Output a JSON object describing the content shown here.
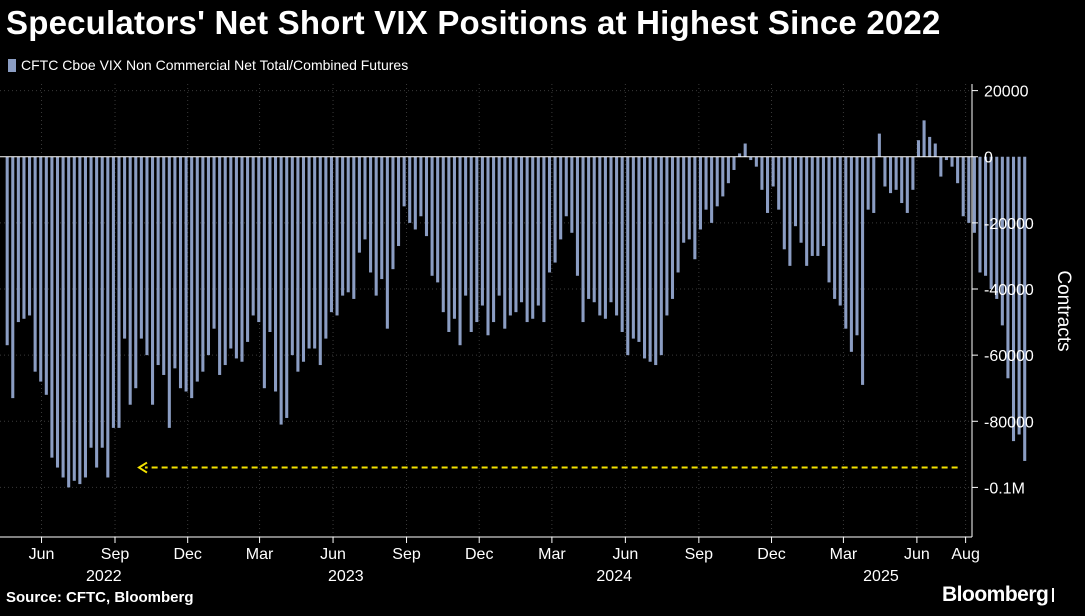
{
  "page": {
    "title": "Speculators' Net Short VIX Positions at Highest Since 2022",
    "source": "Source: CFTC, Bloomberg",
    "brand": "Bloomberg"
  },
  "colors": {
    "background": "#000000",
    "bar": "#8b9dc3",
    "annotation": "#f3e200",
    "grid": "#3a3a3a",
    "text": "#ffffff"
  },
  "chart_data": {
    "type": "bar",
    "series": [
      {
        "name": "CFTC Cboe VIX Non Commercial Net Total/Combined Futures",
        "start": "2022-05-03",
        "step_days": 7,
        "values": [
          -57000,
          -73000,
          -50000,
          -49000,
          -48000,
          -65000,
          -68000,
          -72000,
          -91000,
          -94000,
          -97000,
          -100000,
          -98000,
          -99000,
          -97000,
          -88000,
          -94000,
          -88000,
          -97000,
          -82000,
          -82000,
          -55000,
          -75000,
          -70000,
          -55000,
          -60000,
          -75000,
          -63000,
          -66000,
          -82000,
          -64000,
          -70000,
          -71000,
          -73000,
          -68000,
          -65000,
          -60000,
          -52000,
          -66000,
          -63000,
          -58000,
          -61000,
          -62000,
          -56000,
          -48000,
          -50000,
          -70000,
          -53000,
          -71000,
          -81000,
          -79000,
          -60000,
          -65000,
          -62000,
          -58000,
          -58000,
          -63000,
          -55000,
          -47000,
          -48000,
          -42000,
          -41000,
          -43000,
          -29000,
          -25000,
          -35000,
          -42000,
          -37000,
          -52000,
          -34000,
          -27000,
          -15000,
          -20000,
          -22000,
          -18000,
          -24000,
          -36000,
          -38000,
          -47000,
          -53000,
          -49000,
          -57000,
          -42000,
          -53000,
          -50000,
          -45000,
          -54000,
          -50000,
          -42000,
          -52000,
          -48000,
          -47000,
          -44000,
          -50000,
          -49000,
          -45000,
          -50000,
          -35000,
          -32000,
          -25000,
          -18000,
          -23000,
          -36000,
          -50000,
          -43000,
          -44000,
          -48000,
          -49000,
          -44000,
          -48000,
          -53000,
          -60000,
          -55000,
          -56000,
          -61000,
          -62000,
          -63000,
          -60000,
          -48000,
          -43000,
          -35000,
          -26000,
          -25000,
          -31000,
          -22000,
          -16000,
          -20000,
          -15000,
          -12000,
          -8000,
          -4000,
          1000,
          4000,
          -1000,
          -3000,
          -10000,
          -17000,
          -9000,
          -16000,
          -28000,
          -33000,
          -21000,
          -26000,
          -33000,
          -30000,
          -30000,
          -27000,
          -38000,
          -43000,
          -45000,
          -52000,
          -59000,
          -54000,
          -69000,
          -16000,
          -17000,
          7000,
          -9000,
          -11000,
          -10000,
          -14000,
          -17000,
          -10000,
          5000,
          11000,
          6000,
          4000,
          -6000,
          -1000,
          -3000,
          -8000,
          -18000,
          -20000,
          -23000,
          -35000,
          -36000,
          -40000,
          -43000,
          -51000,
          -67000,
          -86000,
          -84000,
          -92000
        ]
      }
    ],
    "y_ticks": [
      "20000",
      "0",
      "-20000",
      "-40000",
      "-60000",
      "-80000",
      "-0.1M"
    ],
    "ylim": [
      -115000,
      22000
    ],
    "ylabel": "Contracts",
    "x_ticks": [
      {
        "date": "2022-06-15",
        "label": "Jun"
      },
      {
        "date": "2022-09-15",
        "label": "Sep"
      },
      {
        "date": "2022-12-15",
        "label": "Dec"
      },
      {
        "date": "2023-03-15",
        "label": "Mar"
      },
      {
        "date": "2023-06-15",
        "label": "Jun"
      },
      {
        "date": "2023-09-15",
        "label": "Sep"
      },
      {
        "date": "2023-12-15",
        "label": "Dec"
      },
      {
        "date": "2024-03-15",
        "label": "Mar"
      },
      {
        "date": "2024-06-15",
        "label": "Jun"
      },
      {
        "date": "2024-09-15",
        "label": "Sep"
      },
      {
        "date": "2024-12-15",
        "label": "Dec"
      },
      {
        "date": "2025-03-15",
        "label": "Mar"
      },
      {
        "date": "2025-06-15",
        "label": "Jun"
      },
      {
        "date": "2025-08-15",
        "label": "Aug"
      }
    ],
    "years": [
      {
        "date": "2022-09-01",
        "label": "2022"
      },
      {
        "date": "2023-07-01",
        "label": "2023"
      },
      {
        "date": "2024-06-01",
        "label": "2024"
      },
      {
        "date": "2025-05-01",
        "label": "2025"
      }
    ],
    "grid": true,
    "legend": "top-left",
    "annotation": {
      "type": "dashed-arrow",
      "y": -94000,
      "from": "2025-08-05",
      "to": "2022-10-15"
    }
  }
}
